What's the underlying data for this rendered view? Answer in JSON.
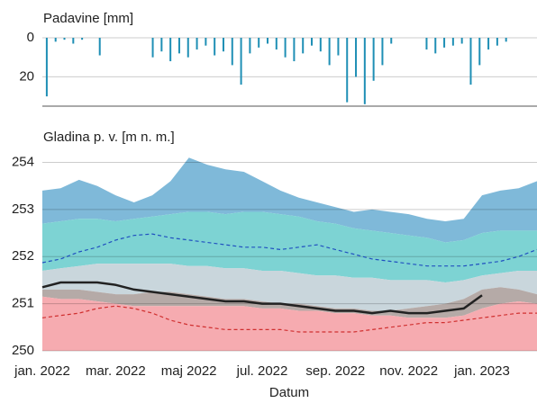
{
  "chart_data": [
    {
      "type": "bar",
      "title": "Padavine [mm]",
      "color": "#1f8fb5",
      "inverted": true,
      "ylim": [
        0,
        35
      ],
      "yticks": [
        0,
        20
      ],
      "grid": true,
      "values": [
        30,
        2,
        1,
        3,
        1,
        0,
        9,
        0,
        0,
        0,
        0,
        0,
        10,
        7,
        12,
        8,
        10,
        6,
        4,
        9,
        7,
        14,
        24,
        8,
        5,
        3,
        6,
        10,
        12,
        8,
        4,
        7,
        14,
        9,
        33,
        20,
        34,
        22,
        14,
        3,
        0,
        0,
        0,
        6,
        8,
        5,
        4,
        3,
        24,
        14,
        6,
        4,
        2,
        0,
        0,
        0
      ]
    },
    {
      "type": "band-line",
      "title": "Gladina p. v. [m n. m.]",
      "x_label": "Datum",
      "categories": [
        "jan. 2022",
        null,
        null,
        null,
        "mar. 2022",
        null,
        null,
        null,
        "maj 2022",
        null,
        null,
        null,
        "jul. 2022",
        null,
        null,
        null,
        "sep. 2022",
        null,
        null,
        null,
        "nov. 2022",
        null,
        null,
        null,
        "jan. 2023",
        null,
        null,
        null
      ],
      "ylim": [
        250,
        254.2
      ],
      "yticks": [
        250,
        251,
        252,
        253,
        254
      ],
      "grid": true,
      "series": [
        {
          "fill": "#7fb9d9",
          "values": [
            253.4,
            253.45,
            253.63,
            253.5,
            253.3,
            253.15,
            253.3,
            253.6,
            254.1,
            253.95,
            253.85,
            253.8,
            253.6,
            253.4,
            253.25,
            253.15,
            253.05,
            252.95,
            253.0,
            252.95,
            252.9,
            252.8,
            252.75,
            252.8,
            253.3,
            253.4,
            253.45,
            253.6
          ]
        },
        {
          "fill": "#7dd3d3",
          "values": [
            252.7,
            252.75,
            252.8,
            252.8,
            252.75,
            252.8,
            252.85,
            252.9,
            252.95,
            252.95,
            252.9,
            252.95,
            252.95,
            252.9,
            252.85,
            252.75,
            252.7,
            252.6,
            252.55,
            252.5,
            252.45,
            252.4,
            252.3,
            252.35,
            252.5,
            252.55,
            252.55,
            252.55
          ]
        },
        {
          "fill": "#c9d6dc",
          "values": [
            251.7,
            251.75,
            251.8,
            251.85,
            251.85,
            251.85,
            251.85,
            251.85,
            251.8,
            251.8,
            251.75,
            251.75,
            251.7,
            251.7,
            251.65,
            251.6,
            251.6,
            251.55,
            251.55,
            251.5,
            251.5,
            251.5,
            251.45,
            251.5,
            251.6,
            251.65,
            251.7,
            251.7
          ]
        },
        {
          "fill": "#b5aaa7",
          "values": [
            251.3,
            251.3,
            251.3,
            251.25,
            251.2,
            251.2,
            251.25,
            251.25,
            251.2,
            251.15,
            251.1,
            251.1,
            251.05,
            251.0,
            251.0,
            250.95,
            250.9,
            250.9,
            250.85,
            250.85,
            250.9,
            250.95,
            251.0,
            251.1,
            251.3,
            251.35,
            251.3,
            251.2
          ]
        },
        {
          "fill": "#f6abb0",
          "values": [
            251.15,
            251.1,
            251.1,
            251.05,
            251.0,
            250.95,
            250.95,
            250.95,
            250.95,
            250.95,
            250.95,
            250.95,
            250.9,
            250.9,
            250.85,
            250.85,
            250.8,
            250.8,
            250.75,
            250.75,
            250.7,
            250.7,
            250.7,
            250.75,
            250.9,
            251.0,
            251.05,
            251.0
          ]
        },
        {
          "color": "#2050c0",
          "dashed": true,
          "values": [
            251.87,
            251.95,
            252.1,
            252.2,
            252.35,
            252.45,
            252.48,
            252.4,
            252.35,
            252.3,
            252.25,
            252.2,
            252.2,
            252.15,
            252.2,
            252.25,
            252.15,
            252.05,
            251.95,
            251.9,
            251.85,
            251.8,
            251.8,
            251.8,
            251.85,
            251.9,
            252.0,
            252.15
          ]
        },
        {
          "color": "#d03030",
          "dashed": true,
          "values": [
            250.7,
            250.75,
            250.8,
            250.9,
            250.95,
            250.9,
            250.8,
            250.65,
            250.55,
            250.5,
            250.45,
            250.45,
            250.45,
            250.45,
            250.4,
            250.4,
            250.4,
            250.4,
            250.45,
            250.5,
            250.55,
            250.6,
            250.6,
            250.65,
            250.7,
            250.75,
            250.8,
            250.8
          ]
        },
        {
          "color": "#222222",
          "width": 2.5,
          "values": [
            251.35,
            251.45,
            251.45,
            251.45,
            251.4,
            251.3,
            251.25,
            251.2,
            251.15,
            251.1,
            251.05,
            251.05,
            251.0,
            251.0,
            250.95,
            250.9,
            250.85,
            250.85,
            250.8,
            250.85,
            250.8,
            250.8,
            250.85,
            250.9,
            251.18,
            null,
            null,
            null
          ]
        }
      ]
    }
  ]
}
